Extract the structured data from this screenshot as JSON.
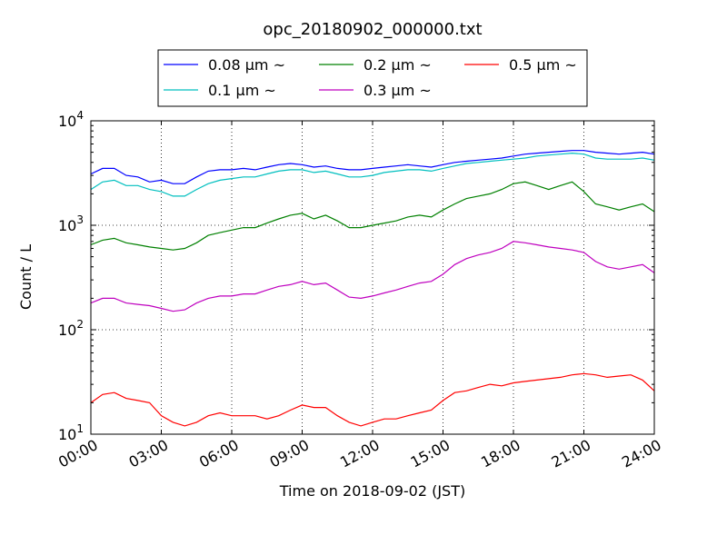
{
  "chart_data": {
    "type": "line",
    "title": "opc_20180902_000000.txt",
    "xlabel": "Time on 2018-09-02 (JST)",
    "ylabel": "Count / L",
    "x_unit": "hour",
    "xlim": [
      0,
      24
    ],
    "ylim": [
      10,
      10000
    ],
    "yscale": "log",
    "grid": true,
    "grid_style": "dotted",
    "legend_position": "top-center",
    "legend_columns": 3,
    "x_ticks": [
      0,
      3,
      6,
      9,
      12,
      15,
      18,
      21,
      24
    ],
    "x_tick_labels": [
      "00:00",
      "03:00",
      "06:00",
      "09:00",
      "12:00",
      "15:00",
      "18:00",
      "21:00",
      "24:00"
    ],
    "y_ticks": [
      10,
      100,
      1000,
      10000
    ],
    "y_tick_labels": [
      {
        "base": "10",
        "exp": "1"
      },
      {
        "base": "10",
        "exp": "2"
      },
      {
        "base": "10",
        "exp": "3"
      },
      {
        "base": "10",
        "exp": "4"
      }
    ],
    "x": [
      0,
      0.5,
      1,
      1.5,
      2,
      2.5,
      3,
      3.5,
      4,
      4.5,
      5,
      5.5,
      6,
      6.5,
      7,
      7.5,
      8,
      8.5,
      9,
      9.5,
      10,
      10.5,
      11,
      11.5,
      12,
      12.5,
      13,
      13.5,
      14,
      14.5,
      15,
      15.5,
      16,
      16.5,
      17,
      17.5,
      18,
      18.5,
      19,
      19.5,
      20,
      20.5,
      21,
      21.5,
      22,
      22.5,
      23,
      23.5,
      24
    ],
    "series": [
      {
        "name": "0.08 μm ~",
        "color": "#0000ff",
        "values": [
          3100,
          3500,
          3500,
          3000,
          2900,
          2600,
          2700,
          2500,
          2500,
          2900,
          3300,
          3400,
          3400,
          3500,
          3400,
          3600,
          3800,
          3900,
          3800,
          3600,
          3700,
          3500,
          3400,
          3400,
          3500,
          3600,
          3700,
          3800,
          3700,
          3600,
          3800,
          4000,
          4100,
          4200,
          4300,
          4400,
          4600,
          4800,
          4900,
          5000,
          5100,
          5200,
          5200,
          5000,
          4900,
          4800,
          4900,
          5000,
          4800
        ]
      },
      {
        "name": "0.1 μm ~",
        "color": "#00bfbf",
        "values": [
          2200,
          2600,
          2700,
          2400,
          2400,
          2200,
          2100,
          1900,
          1900,
          2200,
          2500,
          2700,
          2800,
          2900,
          2900,
          3100,
          3300,
          3400,
          3400,
          3200,
          3300,
          3100,
          2900,
          2900,
          3000,
          3200,
          3300,
          3400,
          3400,
          3300,
          3500,
          3700,
          3900,
          4000,
          4100,
          4200,
          4300,
          4400,
          4600,
          4700,
          4800,
          4900,
          4800,
          4400,
          4300,
          4300,
          4300,
          4400,
          4200
        ]
      },
      {
        "name": "0.2 μm ~",
        "color": "#008000",
        "values": [
          650,
          720,
          750,
          680,
          650,
          620,
          600,
          580,
          600,
          680,
          800,
          850,
          900,
          950,
          950,
          1050,
          1150,
          1250,
          1300,
          1150,
          1250,
          1100,
          950,
          950,
          1000,
          1050,
          1100,
          1200,
          1250,
          1200,
          1400,
          1600,
          1800,
          1900,
          2000,
          2200,
          2500,
          2600,
          2400,
          2200,
          2400,
          2600,
          2100,
          1600,
          1500,
          1400,
          1500,
          1600,
          1350
        ]
      },
      {
        "name": "0.3 μm ~",
        "color": "#bf00bf",
        "values": [
          180,
          200,
          200,
          180,
          175,
          170,
          160,
          150,
          155,
          180,
          200,
          210,
          210,
          220,
          220,
          240,
          260,
          270,
          290,
          270,
          280,
          240,
          205,
          200,
          210,
          225,
          240,
          260,
          280,
          290,
          340,
          420,
          480,
          520,
          550,
          600,
          700,
          680,
          650,
          620,
          600,
          580,
          550,
          450,
          400,
          380,
          400,
          420,
          350
        ]
      },
      {
        "name": "0.5 μm ~",
        "color": "#ff0000",
        "values": [
          20,
          24,
          25,
          22,
          21,
          20,
          15,
          13,
          12,
          13,
          15,
          16,
          15,
          15,
          15,
          14,
          15,
          17,
          19,
          18,
          18,
          15,
          13,
          12,
          13,
          14,
          14,
          15,
          16,
          17,
          21,
          25,
          26,
          28,
          30,
          29,
          31,
          32,
          33,
          34,
          35,
          37,
          38,
          37,
          35,
          36,
          37,
          33,
          26
        ]
      }
    ]
  }
}
